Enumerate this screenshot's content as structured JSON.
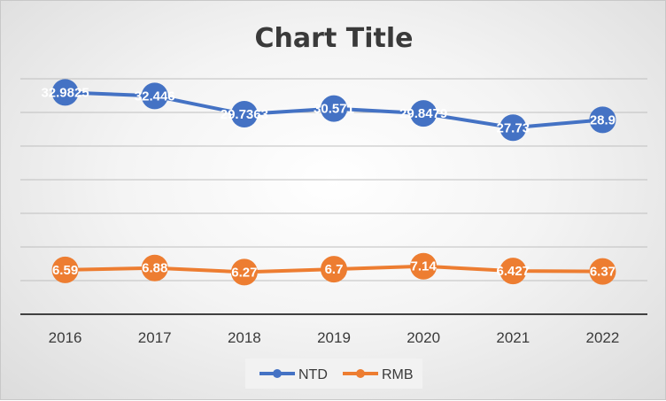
{
  "chart_data": {
    "type": "line",
    "title": "Chart Title",
    "xlabel": "",
    "ylabel": "",
    "categories": [
      "2016",
      "2017",
      "2018",
      "2019",
      "2020",
      "2021",
      "2022"
    ],
    "series": [
      {
        "name": "NTD",
        "color": "#4472c4",
        "values": [
          32.9825,
          32.446,
          29.7363,
          30.571,
          29.8479,
          27.73,
          28.9
        ],
        "labels": [
          "32.9825",
          "32.446",
          "29.7363",
          "30.571",
          "29.8479",
          "27.73",
          "28.9"
        ]
      },
      {
        "name": "RMB",
        "color": "#ed7d31",
        "values": [
          6.59,
          6.88,
          6.27,
          6.7,
          7.14,
          6.427,
          6.37
        ],
        "labels": [
          "6.59",
          "6.88",
          "6.27",
          "6.7",
          "7.14",
          "6.427",
          "6.37"
        ]
      }
    ],
    "ylim": [
      0,
      35
    ],
    "y_axis_labels_shown": false,
    "grid": true,
    "legend": "bottom",
    "data_labels": true,
    "markers": "circle"
  }
}
